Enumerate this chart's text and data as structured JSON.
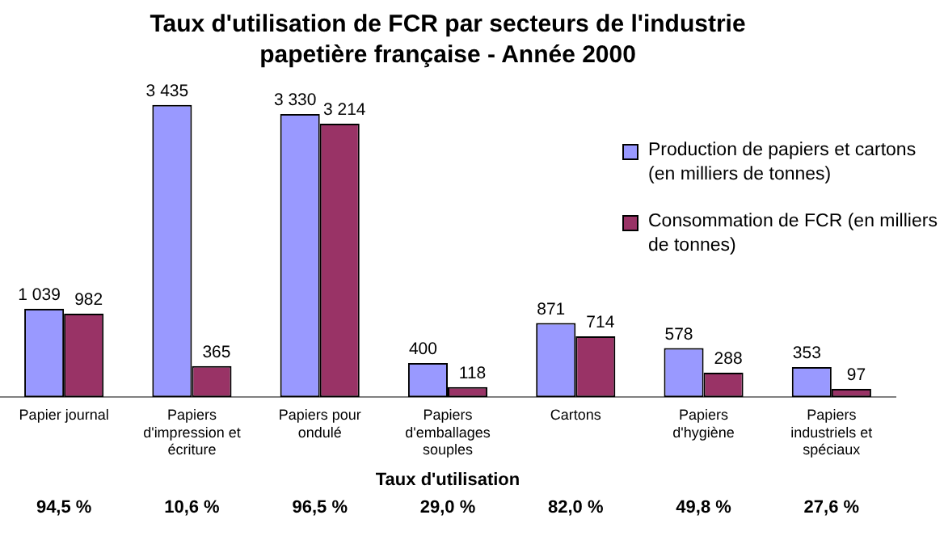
{
  "chart_data": {
    "type": "bar",
    "title": "Taux d'utilisation de FCR par secteurs de l'industrie papetière française - Année 2000",
    "categories": [
      "Papier journal",
      "Papiers d'impression et écriture",
      "Papiers pour ondulé",
      "Papiers d'emballages souples",
      "Cartons",
      "Papiers d'hygiène",
      "Papiers industriels et spéciaux"
    ],
    "series": [
      {
        "name": "Production de papiers et cartons (en milliers de tonnes)",
        "color": "#9999ff",
        "values": [
          1039,
          3435,
          3330,
          400,
          871,
          578,
          353
        ],
        "value_labels": [
          "1 039",
          "3 435",
          "3 330",
          "400",
          "871",
          "578",
          "353"
        ]
      },
      {
        "name": "Consommation de FCR (en milliers de tonnes)",
        "color": "#993366",
        "values": [
          982,
          365,
          3214,
          118,
          714,
          288,
          97
        ],
        "value_labels": [
          "982",
          "365",
          "3 214",
          "118",
          "714",
          "288",
          "97"
        ]
      }
    ],
    "legend": "top right",
    "grid": false,
    "tick_labels": "x",
    "annotations": [
      "Taux d'utilisation",
      "94,5 %",
      "10,6 %",
      "96,5 %",
      "29,0 %",
      "82,0 %",
      "49,8 %",
      "27,6 %"
    ]
  }
}
